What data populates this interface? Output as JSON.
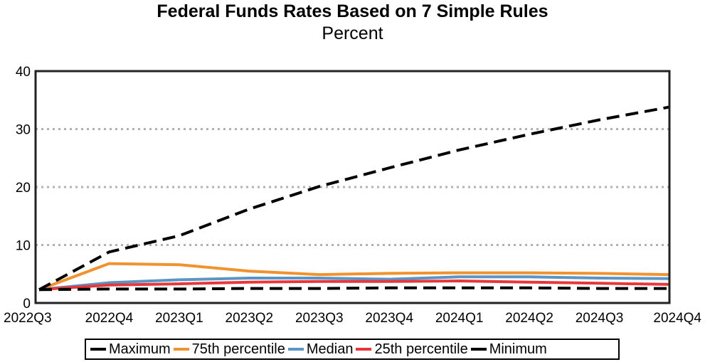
{
  "chart_data": {
    "type": "line",
    "title": "Federal Funds Rates Based on 7 Simple Rules",
    "subtitle": "Percent",
    "categories": [
      "2022Q3",
      "2022Q4",
      "2023Q1",
      "2023Q2",
      "2023Q3",
      "2023Q4",
      "2024Q1",
      "2024Q2",
      "2024Q3",
      "2024Q4"
    ],
    "ylim": [
      0,
      40
    ],
    "yticks": [
      0,
      10,
      20,
      30,
      40
    ],
    "grid": "horizontal dotted",
    "legend_position": "bottom",
    "series": [
      {
        "name": "Maximum",
        "color": "#000000",
        "style": "dashed",
        "values": [
          2.3,
          8.8,
          11.6,
          16.2,
          20.1,
          23.3,
          26.4,
          29.1,
          31.6,
          33.8
        ]
      },
      {
        "name": "75th percentile",
        "color": "#f0922f",
        "style": "solid",
        "values": [
          2.3,
          6.8,
          6.6,
          5.5,
          4.9,
          5.1,
          5.2,
          5.2,
          5.1,
          4.9
        ]
      },
      {
        "name": "Median",
        "color": "#5b95c6",
        "style": "solid",
        "values": [
          2.3,
          3.5,
          4.0,
          4.3,
          4.3,
          4.1,
          4.5,
          4.5,
          4.3,
          4.2
        ]
      },
      {
        "name": "25th percentile",
        "color": "#e8373a",
        "style": "solid",
        "values": [
          2.3,
          3.1,
          3.3,
          3.6,
          3.7,
          3.7,
          3.8,
          3.6,
          3.4,
          3.2
        ]
      },
      {
        "name": "Minimum",
        "color": "#000000",
        "style": "dashed",
        "values": [
          2.3,
          2.4,
          2.4,
          2.5,
          2.5,
          2.6,
          2.6,
          2.6,
          2.5,
          2.5
        ]
      }
    ]
  }
}
